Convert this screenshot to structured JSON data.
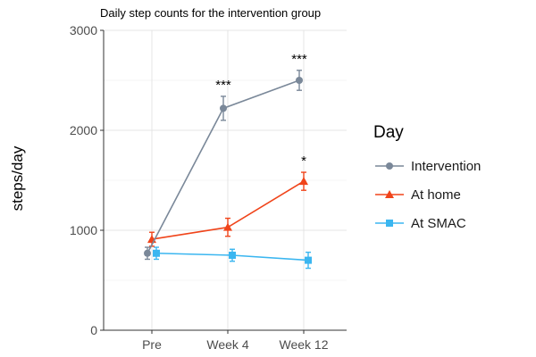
{
  "chart_data": {
    "type": "line",
    "title": "Daily step counts for the intervention group",
    "xlabel": "",
    "ylabel": "steps/day",
    "categories": [
      "Pre",
      "Week 4",
      "Week 12"
    ],
    "yticks": [
      0,
      1000,
      2000,
      3000
    ],
    "ylim": [
      0,
      3000
    ],
    "grid": true,
    "legend_title": "Day",
    "legend_position": "right",
    "series": [
      {
        "name": "Intervention",
        "color": "#7a8899",
        "marker": "circle",
        "values": [
          770,
          2220,
          2500
        ],
        "errors": [
          60,
          120,
          100
        ],
        "annotations": [
          "",
          "***",
          "***"
        ]
      },
      {
        "name": "At home",
        "color": "#f0441a",
        "marker": "triangle",
        "values": [
          910,
          1030,
          1490
        ],
        "errors": [
          70,
          90,
          90
        ],
        "annotations": [
          "",
          "",
          "*"
        ]
      },
      {
        "name": "At SMAC",
        "color": "#3bb6f0",
        "marker": "square",
        "values": [
          770,
          750,
          700
        ],
        "errors": [
          60,
          60,
          80
        ],
        "annotations": [
          "",
          "",
          ""
        ]
      }
    ]
  }
}
